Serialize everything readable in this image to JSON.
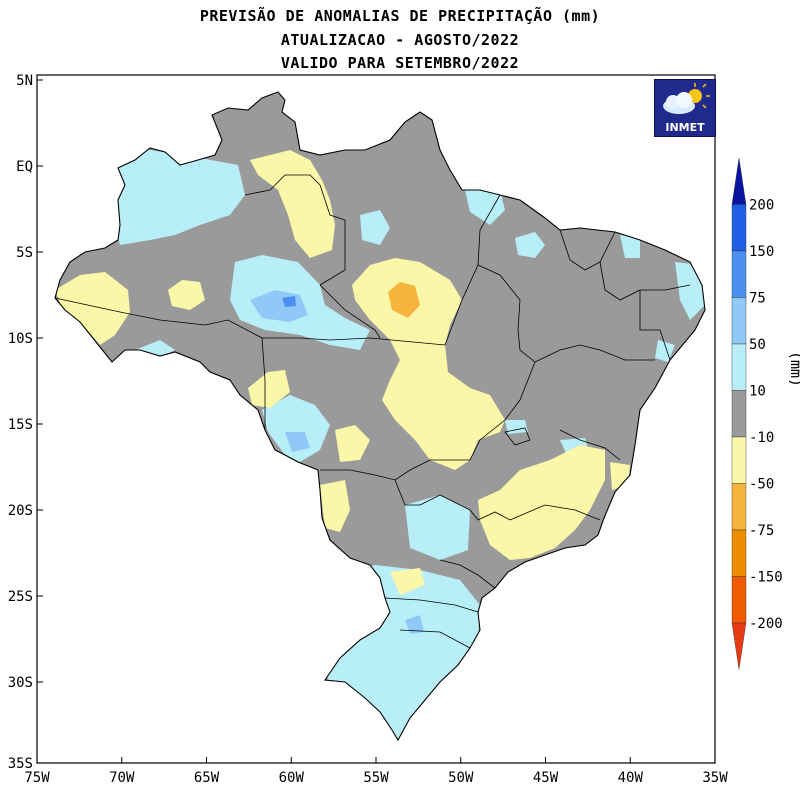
{
  "header": {
    "line1": "PREVISÃO DE ANOMALIAS DE PRECIPITAÇÃO (mm)",
    "line2": "ATUALIZACAO - AGOSTO/2022",
    "line3": "VALIDO PARA SETEMBRO/2022"
  },
  "logo": {
    "text": "INMET",
    "icon": "cloud-sun-icon"
  },
  "axes": {
    "lat_labels": [
      "5N",
      "EQ",
      "5S",
      "10S",
      "15S",
      "20S",
      "25S",
      "30S",
      "35S"
    ],
    "lon_labels": [
      "75W",
      "70W",
      "65W",
      "60W",
      "55W",
      "50W",
      "45W",
      "40W",
      "35W"
    ],
    "lon_range": [
      -75,
      -35
    ],
    "lat_range": [
      -35,
      5
    ]
  },
  "legend": {
    "unit": "(mm)",
    "labels": [
      "200",
      "150",
      "75",
      "50",
      "10",
      "-10",
      "-50",
      "-75",
      "-150",
      "-200"
    ],
    "colors": [
      "#0a14a0",
      "#1e5fe6",
      "#4a90f0",
      "#90c8f8",
      "#b8eef8",
      "#9a9a9a",
      "#fbf7a8",
      "#f7b43c",
      "#f08c00",
      "#f05a00",
      "#e83a14"
    ]
  },
  "colors": {
    "gray": "#9a9a9a",
    "lightblue": "#b8eef8",
    "midblue": "#90c8f8",
    "blue": "#4a90f0",
    "yellow": "#fbf7a8",
    "orange": "#f7b43c"
  }
}
